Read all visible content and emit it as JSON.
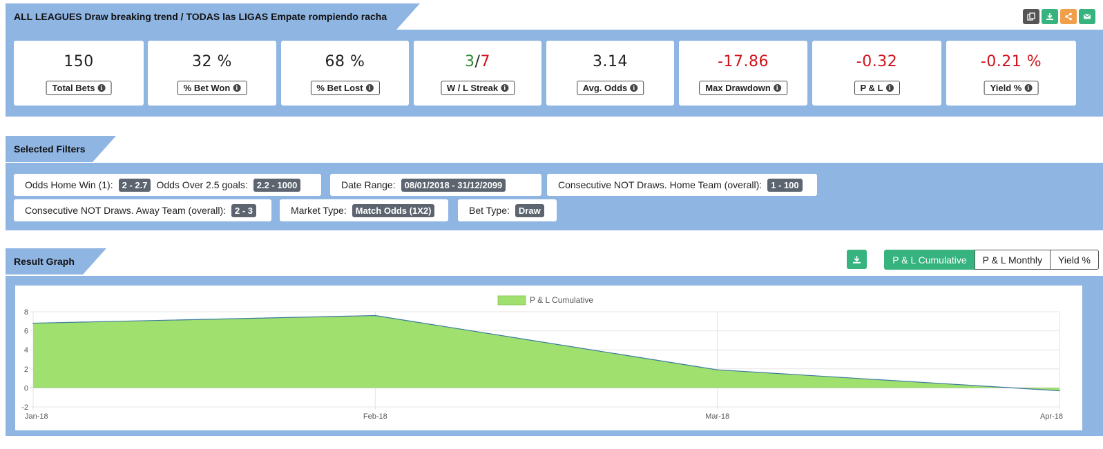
{
  "header": {
    "title": "ALL LEAGUES Draw breaking trend / TODAS las LIGAS Empate rompiendo racha",
    "icons": [
      {
        "name": "copy-icon",
        "color": "#555555"
      },
      {
        "name": "download-icon",
        "color": "#36b37e"
      },
      {
        "name": "share-icon",
        "color": "#f0a04b"
      },
      {
        "name": "email-icon",
        "color": "#36b37e"
      }
    ]
  },
  "stats": [
    {
      "value": "150",
      "label": "Total Bets"
    },
    {
      "value": "32 %",
      "label": "% Bet Won"
    },
    {
      "value": "68 %",
      "label": "% Bet Lost"
    },
    {
      "value_won": "3",
      "value_sep": "/",
      "value_lost": "7",
      "label": "W / L Streak"
    },
    {
      "value": "3.14",
      "label": "Avg. Odds"
    },
    {
      "value": "-17.86",
      "label": "Max Drawdown"
    },
    {
      "value": "-0.32",
      "label": "P & L"
    },
    {
      "value": "-0.21 %",
      "label": "Yield %"
    }
  ],
  "filters": {
    "title": "Selected Filters",
    "chips": [
      {
        "label": "Odds Home Win (1):",
        "value": "2 - 2.7",
        "label2": "Odds Over 2.5 goals:",
        "value2": "2.2 - 1000"
      },
      {
        "label": "Date Range:",
        "value": "08/01/2018 - 31/12/2099"
      },
      {
        "label": "Consecutive NOT Draws. Home Team (overall):",
        "value": "1 - 100"
      },
      {
        "label": "Consecutive NOT Draws. Away Team (overall):",
        "value": "2 - 3"
      },
      {
        "label": "Market Type:",
        "value": "Match Odds (1X2)"
      },
      {
        "label": "Bet Type:",
        "value": "Draw"
      }
    ]
  },
  "graph": {
    "title": "Result Graph",
    "tabs": [
      "P & L Cumulative",
      "P & L Monthly",
      "Yield %"
    ],
    "active_tab": "P & L Cumulative"
  },
  "chart_data": {
    "type": "area",
    "title": "",
    "xlabel": "",
    "ylabel": "",
    "categories": [
      "Jan-18",
      "Feb-18",
      "Mar-18",
      "Apr-18"
    ],
    "series": [
      {
        "name": "P & L Cumulative",
        "values": [
          6.8,
          7.6,
          1.9,
          -0.3
        ],
        "fill": "#a0e06e",
        "stroke": "#3a7a9e"
      }
    ],
    "ylim": [
      -2,
      8
    ],
    "yticks": [
      -2,
      0,
      2,
      4,
      6,
      8
    ],
    "grid": true,
    "legend": "top-center"
  }
}
